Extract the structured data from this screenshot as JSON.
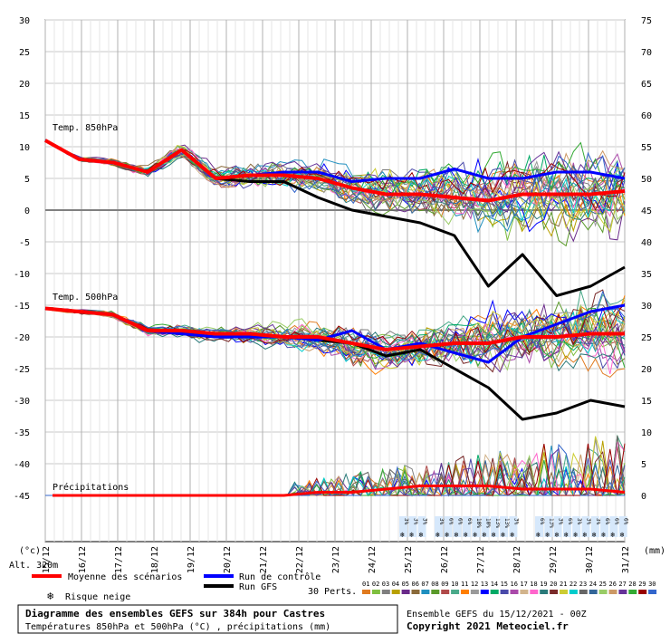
{
  "chart_data": {
    "type": "line",
    "title": "Diagramme des ensembles GEFS sur 384h pour Castres",
    "subtitle": "Températures 850hPa et 500hPa (°C) , précipitations (mm)",
    "ensemble_info": "Ensemble GEFS du 15/12/2021 - 00Z",
    "copyright": "Copyright 2021 Meteociel.fr",
    "altitude": "Alt. 320m",
    "left_unit": "(°c)",
    "right_unit": "(mm)",
    "left_axis": {
      "ticks": [
        "30",
        "25",
        "20",
        "15",
        "10",
        "5",
        "0",
        "-5",
        "-10",
        "-15",
        "-20",
        "-25",
        "-30",
        "-35",
        "-40",
        "-45"
      ],
      "ylim": [
        -45,
        30
      ]
    },
    "right_axis": {
      "ticks": [
        "75",
        "70",
        "65",
        "60",
        "55",
        "50",
        "45",
        "40",
        "35",
        "30",
        "25",
        "20",
        "15",
        "10",
        "5",
        "0"
      ],
      "ylim": [
        0,
        75
      ]
    },
    "dates": [
      "15/12",
      "16/12",
      "17/12",
      "18/12",
      "19/12",
      "20/12",
      "21/12",
      "22/12",
      "23/12",
      "24/12",
      "25/12",
      "26/12",
      "27/12",
      "28/12",
      "29/12",
      "30/12",
      "31/12"
    ],
    "panel_labels": {
      "t850": "Temp. 850hPa",
      "t500": "Temp. 500hPa",
      "precip": "Précipitations"
    },
    "legend": {
      "mean": "Moyenne des scénarios",
      "control": "Run de contrôle",
      "gfs": "Run GFS",
      "snow": "Risque neige",
      "perts": "30 Perts."
    },
    "perturbation_numbers": [
      "01",
      "02",
      "03",
      "04",
      "05",
      "06",
      "07",
      "08",
      "09",
      "10",
      "11",
      "12",
      "13",
      "14",
      "15",
      "16",
      "17",
      "18",
      "19",
      "20",
      "21",
      "22",
      "23",
      "24",
      "25",
      "26",
      "27",
      "28",
      "29",
      "30"
    ],
    "perturbation_colors": [
      "#e07a1f",
      "#7fbf3f",
      "#7f7f7f",
      "#b8a000",
      "#6a2a8a",
      "#8a6a3a",
      "#1f8fbf",
      "#5a9a2a",
      "#b04a4a",
      "#4aaa8a",
      "#ff7f00",
      "#9a9a9a",
      "#0000ff",
      "#00aa66",
      "#4a4aaa",
      "#aa4aaa",
      "#d2b48c",
      "#ff66cc",
      "#2a7a7a",
      "#7a2a2a",
      "#cccc33",
      "#00cccc",
      "#666666",
      "#336699",
      "#99cc66",
      "#cc9966",
      "#663399",
      "#33aa33",
      "#990000",
      "#3366cc"
    ],
    "snow_risk": {
      "group1": [
        "3%",
        "3%",
        "3%"
      ],
      "group2": [
        "3%",
        "6%",
        "6%",
        "6%",
        "10%",
        "10%",
        "13%",
        "13%",
        "3%"
      ],
      "group3": [
        "6%",
        "13%",
        "3%",
        "6%",
        "3%",
        "3%",
        "3%",
        "6%",
        "6%",
        "6%"
      ]
    },
    "series_850": {
      "mean": [
        11,
        8,
        7.5,
        6,
        9.5,
        5,
        5.5,
        5.5,
        5,
        3.5,
        2.5,
        2.5,
        2,
        1.5,
        2.5,
        2.5,
        2.5,
        3
      ],
      "control": [
        11,
        8,
        7.5,
        6,
        9.5,
        5,
        5.5,
        6,
        6,
        4.5,
        5,
        5,
        6.5,
        5,
        5,
        6,
        6,
        5
      ],
      "gfs": [
        11,
        8,
        7.5,
        6,
        9.5,
        5,
        4.5,
        4.5,
        2,
        0,
        -1,
        -2,
        -4,
        -12,
        -7,
        -13.5,
        -12,
        -9
      ]
    },
    "series_500": {
      "mean": [
        -15.5,
        -16,
        -16.5,
        -19,
        -19,
        -19.5,
        -19.5,
        -20,
        -20,
        -21,
        -22,
        -21.5,
        -21,
        -21,
        -20,
        -20,
        -19.5,
        -19.5
      ],
      "control": [
        -15.5,
        -16,
        -16.5,
        -19,
        -19.5,
        -20,
        -20,
        -20,
        -20.5,
        -19,
        -22,
        -21,
        -22.5,
        -24,
        -20,
        -18,
        -16,
        -15
      ],
      "gfs": [
        -15.5,
        -16,
        -16.5,
        -19,
        -19.5,
        -20,
        -20,
        -20,
        -20.5,
        -21,
        -23,
        -22,
        -25,
        -28,
        -33,
        -32,
        -30,
        -31
      ]
    },
    "precip_mean_mm": [
      0,
      0,
      0,
      0,
      0,
      0,
      0,
      0,
      0.5,
      0.5,
      1,
      1.5,
      1.5,
      1.5,
      1,
      1,
      1,
      0.5
    ]
  }
}
